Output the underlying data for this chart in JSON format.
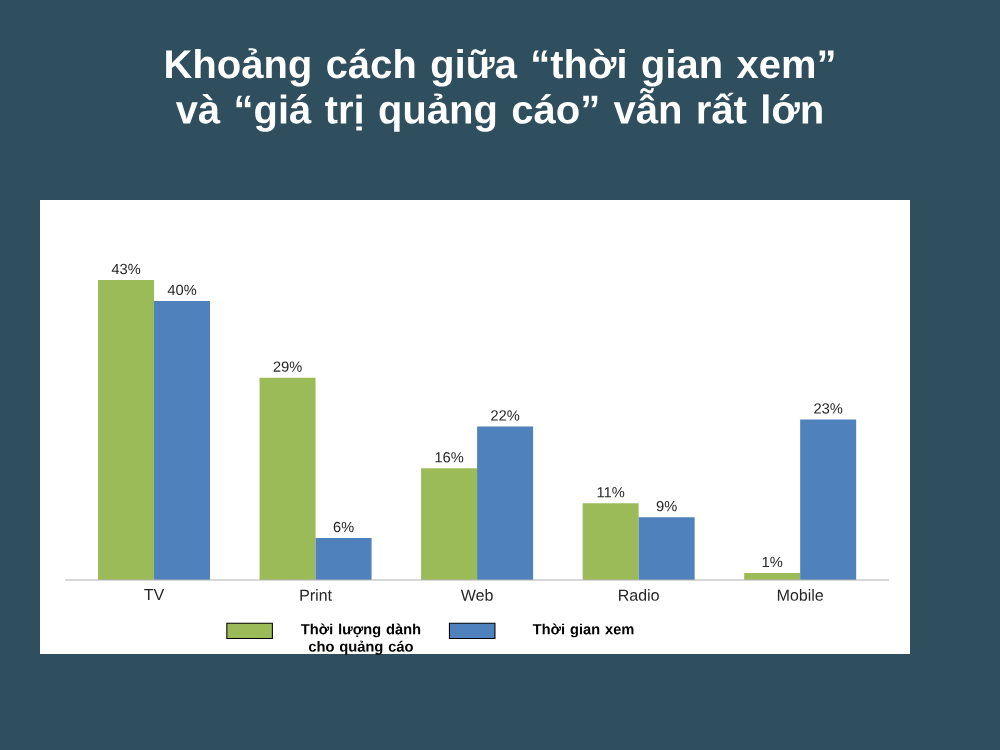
{
  "chart_data": {
    "type": "bar",
    "title": "Khoảng cách giữa “thời gian xem” và “giá trị quảng cáo” vẫn rất lớn",
    "categories": [
      "TV",
      "Print",
      "Web",
      "Radio",
      "Mobile"
    ],
    "series": [
      {
        "name": "Thời lượng dành cho quảng cáo",
        "color": "#9bbb59",
        "values": [
          43,
          29,
          16,
          11,
          1
        ],
        "value_labels": [
          "43%",
          "29%",
          "16%",
          "11%",
          "1%"
        ]
      },
      {
        "name": "Thời gian xem",
        "color": "#4f81bd",
        "values": [
          40,
          6,
          22,
          9,
          23
        ],
        "value_labels": [
          "40%",
          "6%",
          "22%",
          "9%",
          "23%"
        ]
      }
    ],
    "legend": "bottom"
  }
}
